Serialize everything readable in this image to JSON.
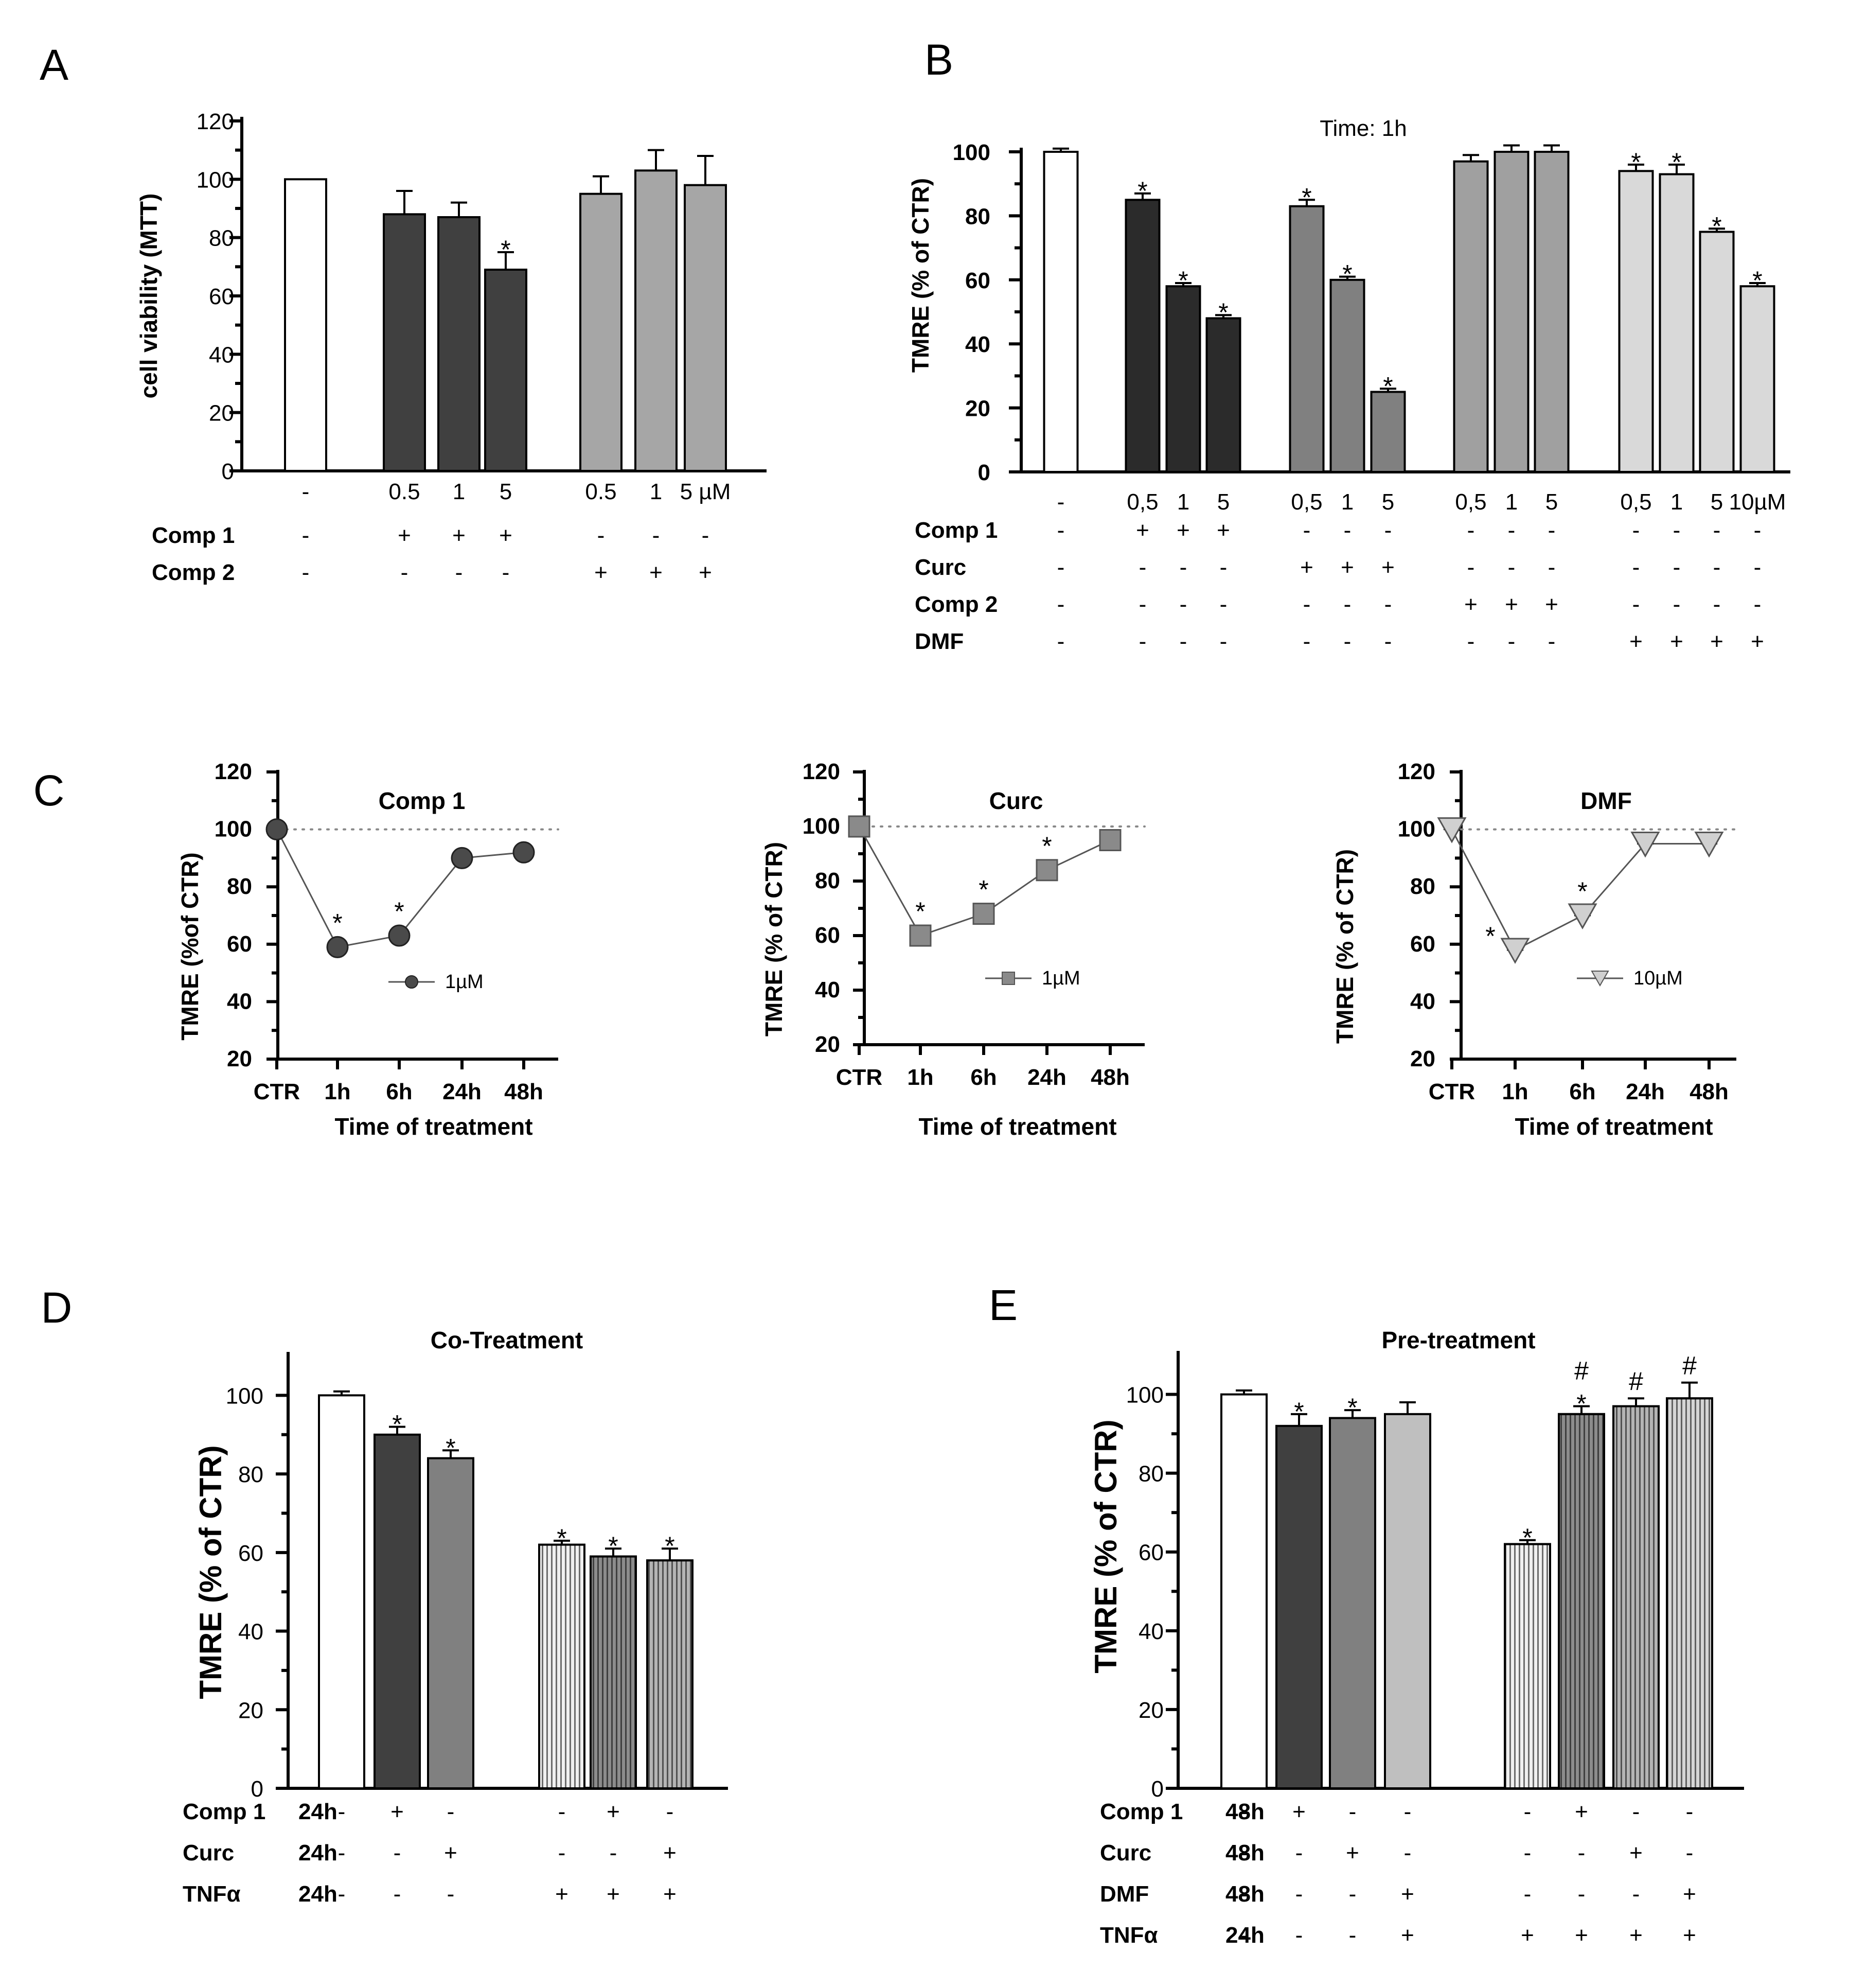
{
  "chart_data": [
    {
      "id": "A",
      "type": "bar",
      "panel_letter": "A",
      "ylabel": "cell viability (MTT)",
      "ylim": [
        0,
        120
      ],
      "yticks": [
        0,
        20,
        40,
        60,
        80,
        100,
        120
      ],
      "bars": [
        {
          "label": "-",
          "value": 100,
          "err": 0,
          "star": false,
          "color": "#ffffff"
        },
        {
          "label": "0.5",
          "value": 88,
          "err": 8,
          "star": false,
          "color": "#404040"
        },
        {
          "label": "1",
          "value": 87,
          "err": 5,
          "star": false,
          "color": "#404040"
        },
        {
          "label": "5",
          "value": 69,
          "err": 6,
          "star": true,
          "color": "#404040"
        },
        {
          "label": "0.5",
          "value": 95,
          "err": 6,
          "star": false,
          "color": "#a6a6a6"
        },
        {
          "label": "1",
          "value": 103,
          "err": 7,
          "star": false,
          "color": "#a6a6a6"
        },
        {
          "label": "5 µM",
          "value": 98,
          "err": 10,
          "star": false,
          "color": "#a6a6a6"
        }
      ],
      "conditions": [
        {
          "name": "Comp 1",
          "marks": [
            "-",
            "+",
            "+",
            "+",
            "-",
            "-",
            "-"
          ]
        },
        {
          "name": "Comp 2",
          "marks": [
            "-",
            "-",
            "-",
            "-",
            "+",
            "+",
            "+"
          ]
        }
      ]
    },
    {
      "id": "B",
      "type": "bar",
      "panel_letter": "B",
      "title": "Time: 1h",
      "ylabel": "TMRE (% of CTR)",
      "ylim": [
        0,
        100
      ],
      "yticks": [
        0,
        20,
        40,
        60,
        80,
        100
      ],
      "bars": [
        {
          "label": "-",
          "value": 100,
          "err": 1,
          "star": false,
          "color": "#ffffff"
        },
        {
          "label": "0,5",
          "value": 85,
          "err": 2,
          "star": true,
          "color": "#2b2b2b"
        },
        {
          "label": "1",
          "value": 58,
          "err": 1,
          "star": true,
          "color": "#2b2b2b"
        },
        {
          "label": "5",
          "value": 48,
          "err": 1,
          "star": true,
          "color": "#2b2b2b"
        },
        {
          "label": "0,5",
          "value": 83,
          "err": 2,
          "star": true,
          "color": "#808080"
        },
        {
          "label": "1",
          "value": 60,
          "err": 1,
          "star": true,
          "color": "#808080"
        },
        {
          "label": "5",
          "value": 25,
          "err": 1,
          "star": true,
          "color": "#808080"
        },
        {
          "label": "0,5",
          "value": 97,
          "err": 2,
          "star": false,
          "color": "#a0a0a0"
        },
        {
          "label": "1",
          "value": 100,
          "err": 2,
          "star": false,
          "color": "#a0a0a0"
        },
        {
          "label": "5",
          "value": 100,
          "err": 2,
          "star": false,
          "color": "#a0a0a0"
        },
        {
          "label": "0,5",
          "value": 94,
          "err": 2,
          "star": true,
          "color": "#d9d9d9"
        },
        {
          "label": "1",
          "value": 93,
          "err": 3,
          "star": true,
          "color": "#d9d9d9"
        },
        {
          "label": "5",
          "value": 75,
          "err": 1,
          "star": true,
          "color": "#d9d9d9"
        },
        {
          "label": "10µM",
          "value": 58,
          "err": 1,
          "star": true,
          "color": "#d9d9d9"
        }
      ],
      "conditions": [
        {
          "name": "Comp 1",
          "marks": [
            "-",
            "+",
            "+",
            "+",
            "-",
            "-",
            "-",
            "-",
            "-",
            "-",
            "-",
            "-",
            "-",
            "-"
          ]
        },
        {
          "name": "Curc",
          "marks": [
            "-",
            "-",
            "-",
            "-",
            "+",
            "+",
            "+",
            "-",
            "-",
            "-",
            "-",
            "-",
            "-",
            "-"
          ]
        },
        {
          "name": "Comp 2",
          "marks": [
            "-",
            "-",
            "-",
            "-",
            "-",
            "-",
            "-",
            "+",
            "+",
            "+",
            "-",
            "-",
            "-",
            "-"
          ]
        },
        {
          "name": "DMF",
          "marks": [
            "-",
            "-",
            "-",
            "-",
            "-",
            "-",
            "-",
            "-",
            "-",
            "-",
            "+",
            "+",
            "+",
            "+"
          ]
        }
      ]
    },
    {
      "id": "C1",
      "type": "line",
      "panel_letter": "C",
      "title": "Comp 1",
      "xlabel": "Time of treatment",
      "ylabel": "TMRE (%of CTR)",
      "ylim": [
        20,
        120
      ],
      "yticks": [
        20,
        40,
        60,
        80,
        100,
        120
      ],
      "categories": [
        "CTR",
        "1h",
        "6h",
        "24h",
        "48h"
      ],
      "values": [
        100,
        59,
        63,
        90,
        92
      ],
      "stars": [
        false,
        true,
        true,
        false,
        false
      ],
      "marker": "circle",
      "color": "#4a4a4a",
      "legend": "1µM"
    },
    {
      "id": "C2",
      "type": "line",
      "title": "Curc",
      "xlabel": "Time of treatment",
      "ylabel": "TMRE (% of CTR)",
      "ylim": [
        20,
        120
      ],
      "yticks": [
        20,
        40,
        60,
        80,
        100,
        120
      ],
      "categories": [
        "CTR",
        "1h",
        "6h",
        "24h",
        "48h"
      ],
      "values": [
        100,
        60,
        68,
        84,
        95
      ],
      "stars": [
        false,
        true,
        true,
        true,
        false
      ],
      "marker": "square",
      "color": "#8a8a8a",
      "legend": "1µM"
    },
    {
      "id": "C3",
      "type": "line",
      "title": "DMF",
      "xlabel": "Time of treatment",
      "ylabel": "TMRE (% of CTR)",
      "ylim": [
        20,
        120
      ],
      "yticks": [
        20,
        40,
        60,
        80,
        100,
        120
      ],
      "categories": [
        "CTR",
        "1h",
        "6h",
        "24h",
        "48h"
      ],
      "values": [
        100,
        58,
        70,
        95,
        95
      ],
      "stars": [
        false,
        true,
        true,
        false,
        false
      ],
      "marker": "triangle",
      "color": "#d0d0d0",
      "legend": "10µM"
    },
    {
      "id": "D",
      "type": "bar",
      "panel_letter": "D",
      "title": "Co-Treatment",
      "ylabel": "TMRE  (% of CTR)",
      "ylim": [
        0,
        110
      ],
      "yticks": [
        0,
        20,
        40,
        60,
        80,
        100
      ],
      "bars": [
        {
          "value": 100,
          "err": 1,
          "star": false,
          "color": "#ffffff",
          "pattern": false
        },
        {
          "value": 90,
          "err": 2,
          "star": true,
          "color": "#404040",
          "pattern": false
        },
        {
          "value": 84,
          "err": 2,
          "star": true,
          "color": "#808080",
          "pattern": false
        },
        {
          "value": 62,
          "err": 1,
          "star": true,
          "color": "#f0f0f0",
          "pattern": true
        },
        {
          "value": 59,
          "err": 2,
          "star": true,
          "color": "#8c8c8c",
          "pattern": true
        },
        {
          "value": 58,
          "err": 3,
          "star": true,
          "color": "#b4b4b4",
          "pattern": true
        }
      ],
      "conditions": [
        {
          "name": "Comp 1",
          "time": "24h",
          "marks": [
            "-",
            "+",
            "-",
            "-",
            "+",
            "-"
          ]
        },
        {
          "name": "Curc",
          "time": "24h",
          "marks": [
            "-",
            "-",
            "+",
            "-",
            "-",
            "+"
          ]
        },
        {
          "name": "TNFα",
          "time": "24h",
          "marks": [
            "-",
            "-",
            "-",
            "+",
            "+",
            "+"
          ]
        }
      ]
    },
    {
      "id": "E",
      "type": "bar",
      "panel_letter": "E",
      "title": "Pre-treatment",
      "ylabel": "TMRE (% of CTR)",
      "ylim": [
        0,
        110
      ],
      "yticks": [
        0,
        20,
        40,
        60,
        80,
        100
      ],
      "bars": [
        {
          "value": 100,
          "err": 1,
          "star": false,
          "hash": false,
          "color": "#ffffff",
          "pattern": false
        },
        {
          "value": 92,
          "err": 3,
          "star": true,
          "hash": false,
          "color": "#404040",
          "pattern": false
        },
        {
          "value": 94,
          "err": 2,
          "star": true,
          "hash": false,
          "color": "#808080",
          "pattern": false
        },
        {
          "value": 95,
          "err": 3,
          "star": false,
          "hash": false,
          "color": "#bfbfbf",
          "pattern": false
        },
        {
          "value": 62,
          "err": 1,
          "star": true,
          "hash": false,
          "color": "#f0f0f0",
          "pattern": true
        },
        {
          "value": 95,
          "err": 2,
          "star": true,
          "hash": true,
          "color": "#8c8c8c",
          "pattern": true
        },
        {
          "value": 97,
          "err": 2,
          "star": false,
          "hash": true,
          "color": "#b4b4b4",
          "pattern": true
        },
        {
          "value": 99,
          "err": 4,
          "star": false,
          "hash": true,
          "color": "#d6d6d6",
          "pattern": true
        }
      ],
      "conditions": [
        {
          "name": "Comp 1",
          "time": "48h",
          "marks": [
            "-",
            "+",
            "-",
            "-",
            "-",
            "+",
            "-",
            "-"
          ]
        },
        {
          "name": "Curc",
          "time": "48h",
          "marks": [
            "-",
            "-",
            "+",
            "-",
            "-",
            "-",
            "+",
            "-"
          ]
        },
        {
          "name": "DMF",
          "time": "48h",
          "marks": [
            "-",
            "-",
            "-",
            "+",
            "-",
            "-",
            "-",
            "+"
          ]
        },
        {
          "name": "TNFα",
          "time": "24h",
          "marks": [
            "-",
            "-",
            "-",
            "+",
            "+",
            "+",
            "+",
            "+"
          ]
        }
      ]
    }
  ]
}
